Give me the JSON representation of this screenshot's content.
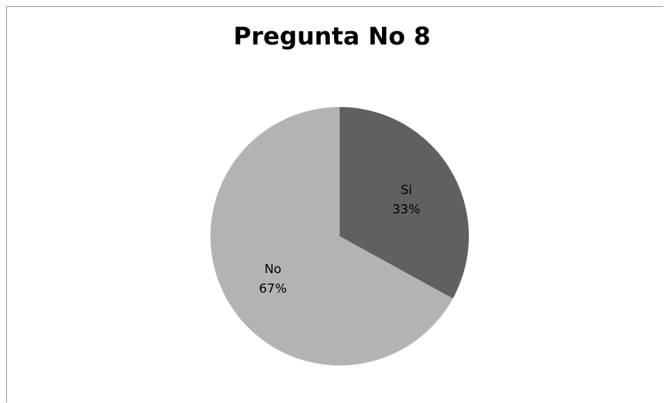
{
  "chart_data": {
    "type": "pie",
    "title": "Pregunta No 8",
    "slices": [
      {
        "label": "Si",
        "value": 33,
        "display": "33%",
        "color": "#606060"
      },
      {
        "label": "No",
        "value": 67,
        "display": "67%",
        "color": "#b3b3b3"
      }
    ],
    "legend": "none",
    "labels": "inside"
  }
}
